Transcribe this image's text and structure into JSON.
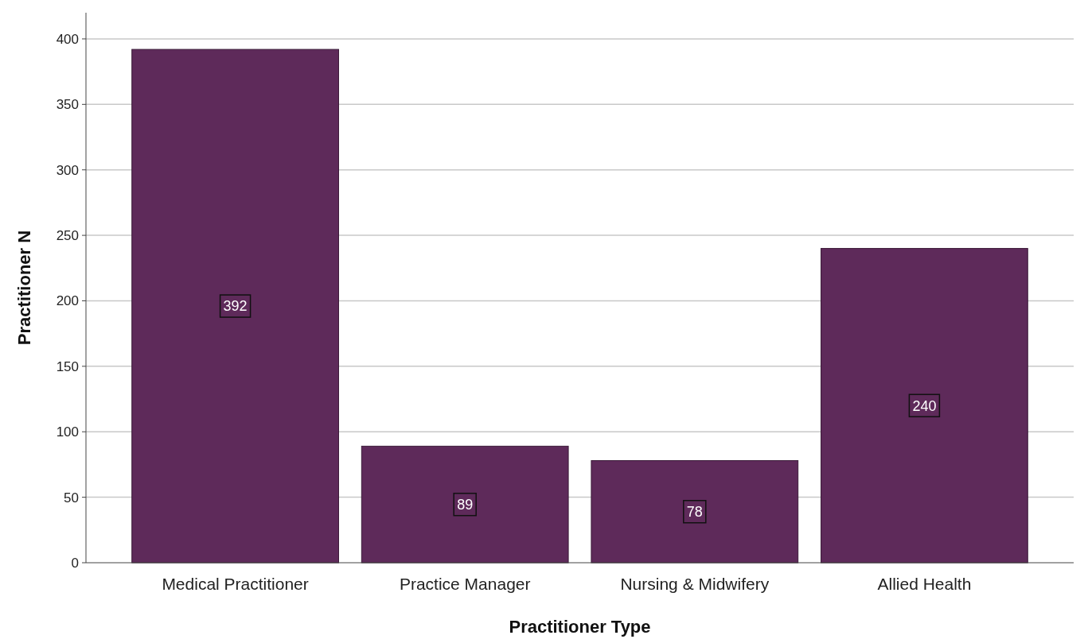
{
  "chart_data": {
    "type": "bar",
    "xlabel": "Practitioner Type",
    "ylabel": "Practitioner N",
    "categories": [
      "Medical Practitioner",
      "Practice Manager",
      "Nursing & Midwifery",
      "Allied Health"
    ],
    "values": [
      392,
      89,
      78,
      240
    ],
    "color": "#5e2a5a",
    "ylim": [
      0,
      420
    ],
    "yticks": [
      0,
      50,
      100,
      150,
      200,
      250,
      300,
      350,
      400
    ],
    "grid": "y",
    "data_labels": true
  }
}
